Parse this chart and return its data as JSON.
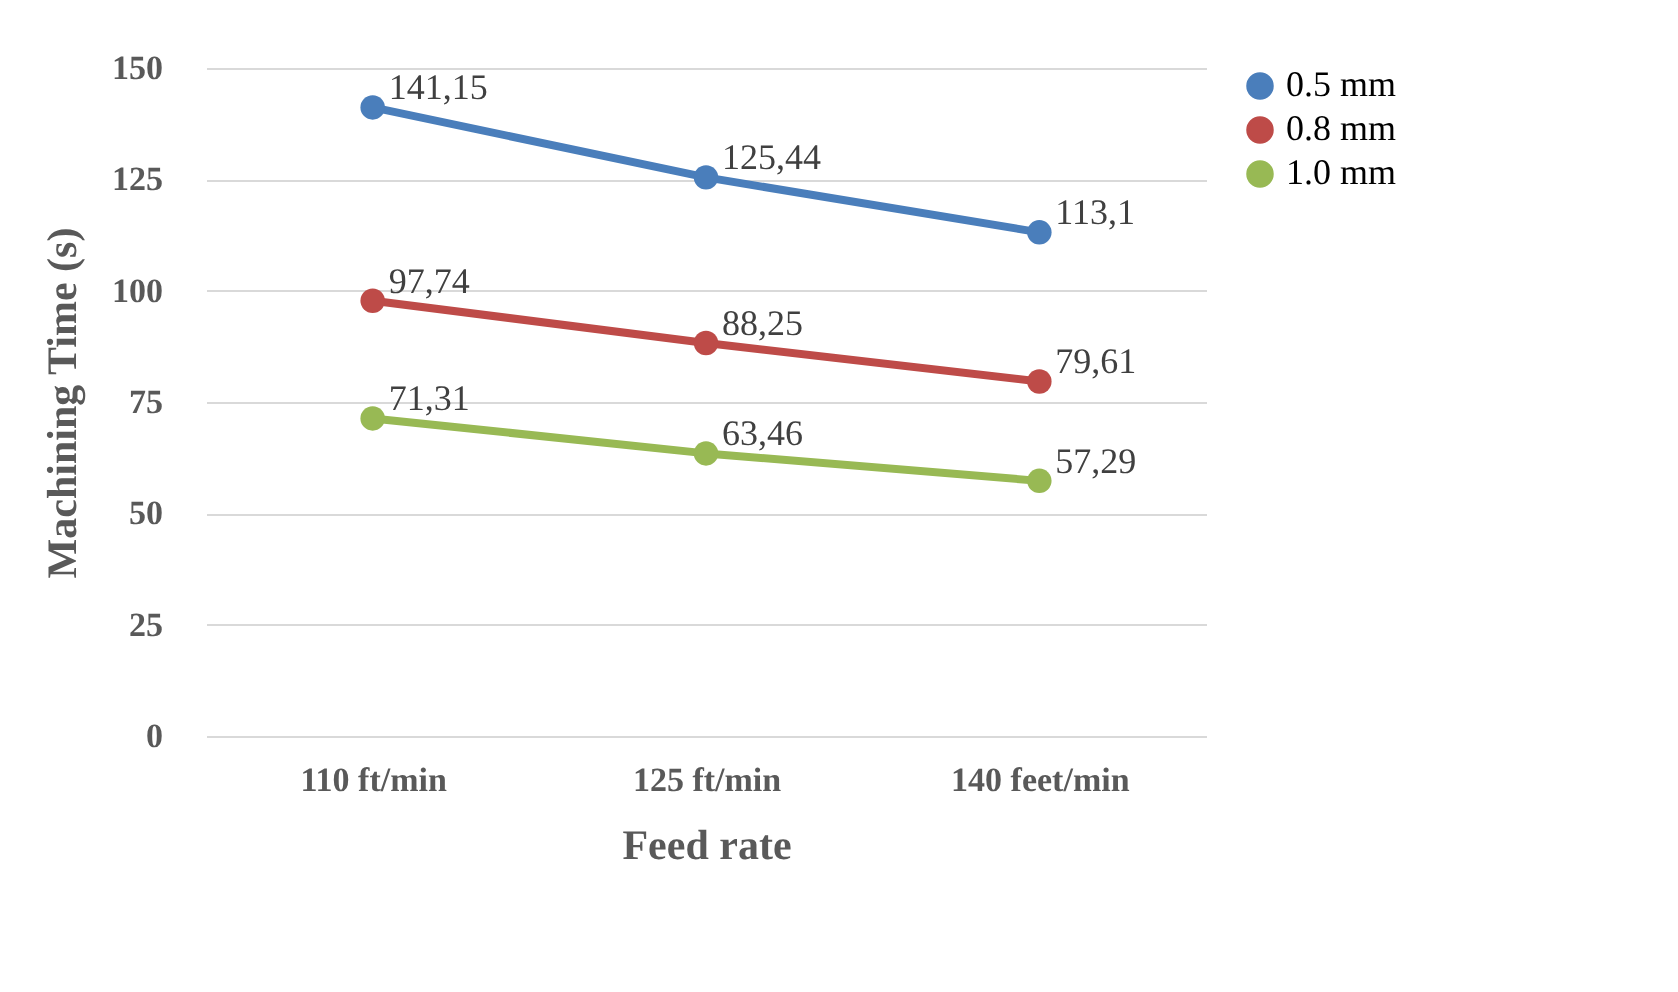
{
  "chart_data": {
    "type": "line",
    "xlabel": "Feed rate",
    "ylabel": "Machining Time (s)",
    "categories": [
      "110 ft/min",
      "125 ft/min",
      "140 feet/min"
    ],
    "series": [
      {
        "name": "0.5 mm",
        "color": "#4a7ebb",
        "values": [
          141.15,
          125.44,
          113.1
        ],
        "value_labels": [
          "141,15",
          "125,44",
          "113,1"
        ]
      },
      {
        "name": "0.8 mm",
        "color": "#be4b48",
        "values": [
          97.74,
          88.25,
          79.61
        ],
        "value_labels": [
          "97,74",
          "88,25",
          "79,61"
        ]
      },
      {
        "name": "1.0 mm",
        "color": "#98b954",
        "values": [
          71.31,
          63.46,
          57.29
        ],
        "value_labels": [
          "71,31",
          "63,46",
          "57,29"
        ]
      }
    ],
    "ylim": [
      0,
      150
    ],
    "yticks": [
      0,
      25,
      50,
      75,
      100,
      125,
      150
    ],
    "grid": "y",
    "legend": "right",
    "marker": "circle",
    "line_style": "solid"
  }
}
